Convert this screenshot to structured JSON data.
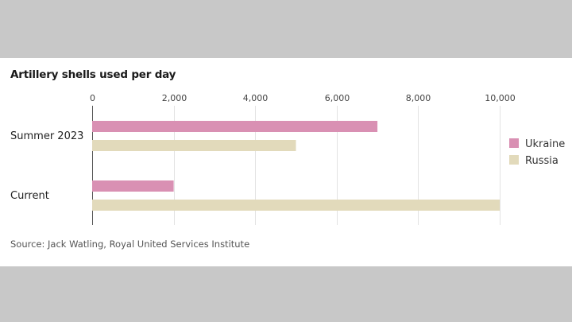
{
  "chart_data": {
    "type": "bar",
    "orientation": "horizontal",
    "title": "Artillery shells used per day",
    "categories": [
      "Summer 2023",
      "Current"
    ],
    "series": [
      {
        "name": "Ukraine",
        "values": [
          7000,
          2000
        ],
        "color": "#d990b3"
      },
      {
        "name": "Russia",
        "values": [
          5000,
          10000
        ],
        "color": "#e2dabb"
      }
    ],
    "xlim": [
      0,
      10000
    ],
    "xticks": [
      0,
      2000,
      4000,
      6000,
      8000,
      10000
    ],
    "xtick_labels": [
      "0",
      "2,000",
      "4,000",
      "6,000",
      "8,000",
      "10,000"
    ],
    "grid": true,
    "legend_position": "right",
    "source": "Source: Jack Watling, Royal United Services Institute"
  }
}
